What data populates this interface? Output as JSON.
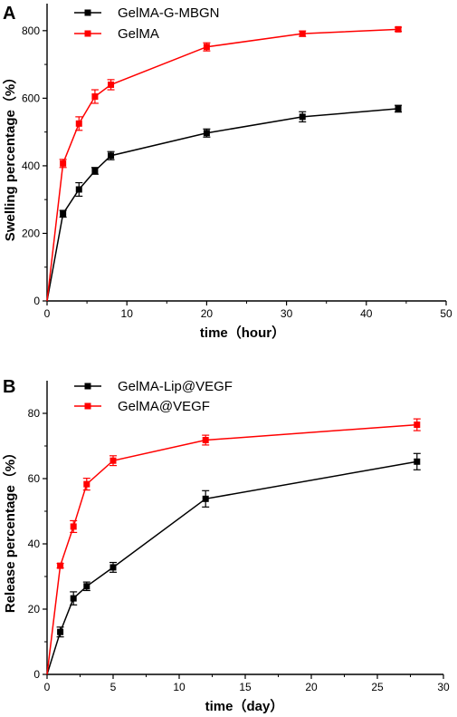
{
  "chart_data": [
    {
      "panel": "A",
      "type": "line",
      "xlabel": "time（hour）",
      "ylabel": "Swelling percentage（%）",
      "xlim": [
        0,
        50
      ],
      "ylim": [
        0,
        880
      ],
      "xticks": [
        0,
        10,
        20,
        30,
        40,
        50
      ],
      "yticks": [
        0,
        200,
        400,
        600,
        800
      ],
      "legend_position": "top-left",
      "grid": false,
      "series": [
        {
          "name": "GelMA-G-MBGN",
          "color": "#000000",
          "x": [
            0,
            2,
            4,
            6,
            8,
            20,
            32,
            44
          ],
          "y": [
            0,
            258,
            330,
            385,
            430,
            497,
            545,
            569
          ],
          "err": [
            0,
            10,
            20,
            10,
            12,
            12,
            15,
            10
          ]
        },
        {
          "name": "GelMA",
          "color": "#ff0000",
          "x": [
            0,
            2,
            4,
            6,
            8,
            20,
            32,
            44
          ],
          "y": [
            0,
            407,
            525,
            605,
            640,
            752,
            791,
            804
          ],
          "err": [
            0,
            12,
            20,
            20,
            15,
            12,
            8,
            6
          ]
        }
      ]
    },
    {
      "panel": "B",
      "type": "line",
      "xlabel": "time（day）",
      "ylabel": "Release percentage（%）",
      "xlim": [
        0,
        30
      ],
      "ylim": [
        0,
        90
      ],
      "xticks": [
        0,
        5,
        10,
        15,
        20,
        25,
        30
      ],
      "yticks": [
        0,
        20,
        40,
        60,
        80
      ],
      "legend_position": "top-left",
      "grid": false,
      "series": [
        {
          "name": "GelMA-Lip@VEGF",
          "color": "#000000",
          "x": [
            0,
            1,
            2,
            3,
            5,
            12,
            28
          ],
          "y": [
            0,
            13,
            23.3,
            27,
            32.8,
            53.8,
            65.2
          ],
          "err": [
            0,
            1.5,
            2,
            1.3,
            1.5,
            2.5,
            2.5
          ]
        },
        {
          "name": "GelMA@VEGF",
          "color": "#ff0000",
          "x": [
            0,
            1,
            2,
            3,
            5,
            12,
            28
          ],
          "y": [
            0,
            33.3,
            45.3,
            58.3,
            65.5,
            71.8,
            76.5
          ],
          "err": [
            0,
            0.7,
            1.8,
            1.8,
            1.5,
            1.5,
            1.8
          ]
        }
      ]
    }
  ]
}
